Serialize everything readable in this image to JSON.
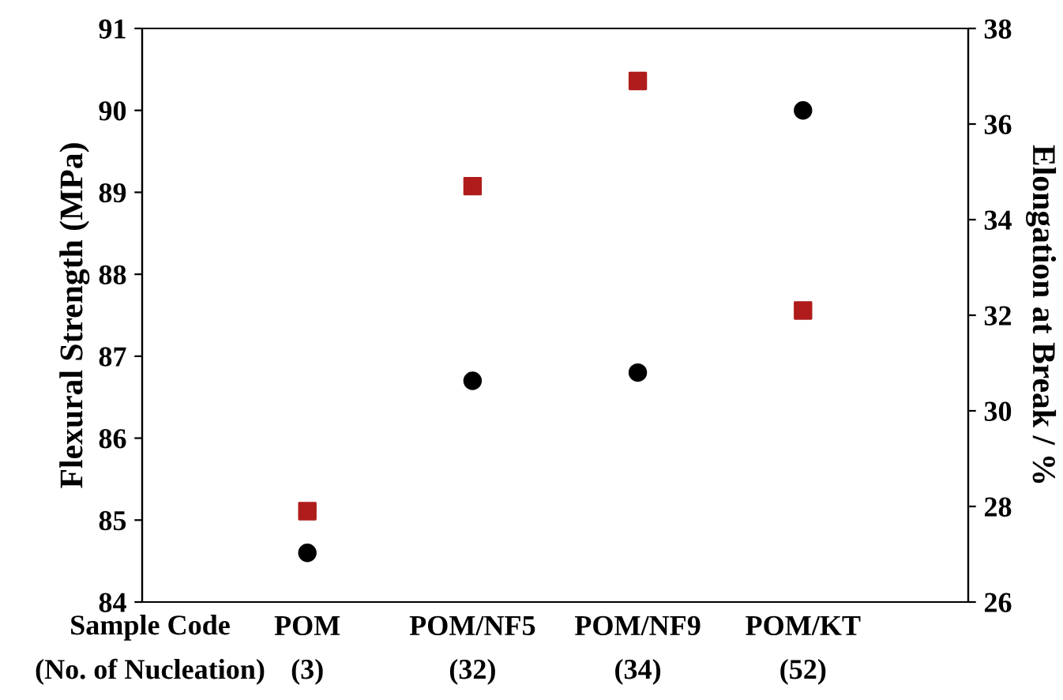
{
  "chart_data": {
    "type": "scatter",
    "xlabel": "Sample Code\n(No. of Nucleation)",
    "ylabel": "Flexural Strength (MPa)",
    "y2label": "Elongation at Break / %",
    "categories": [
      "POM\n(3)",
      "POM/NF5\n(32)",
      "POM/NF9\n(34)",
      "POM/KT\n(52)"
    ],
    "series": [
      {
        "color": "#000000",
        "marker": "circle",
        "values": [
          84.6,
          86.7,
          86.8,
          90.0
        ]
      },
      {
        "color": "#b01c1c",
        "marker": "square",
        "axis": "y2",
        "values": [
          27.9,
          34.7,
          36.9,
          32.1
        ]
      }
    ],
    "ylim": [
      84,
      91
    ],
    "yticks": [
      84,
      85,
      86,
      87,
      88,
      89,
      90,
      91
    ],
    "y2lim": [
      26,
      38
    ],
    "y2ticks": [
      26,
      28,
      30,
      32,
      34,
      36,
      38
    ],
    "grid": false,
    "legend": false
  }
}
